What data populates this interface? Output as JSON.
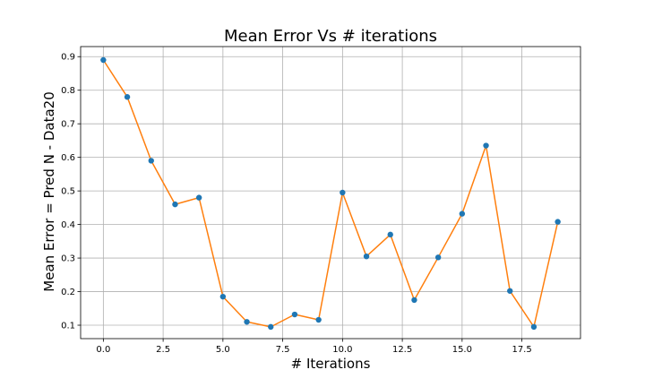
{
  "chart_data": {
    "type": "line",
    "title": "Mean Error Vs # iterations",
    "xlabel": "# Iterations",
    "ylabel": "Mean Error = Pred N - Data20",
    "xlim": [
      -0.95,
      19.95
    ],
    "ylim": [
      0.06,
      0.93
    ],
    "xticks": [
      0.0,
      2.5,
      5.0,
      7.5,
      10.0,
      12.5,
      15.0,
      17.5
    ],
    "xtick_labels": [
      "0.0",
      "2.5",
      "5.0",
      "7.5",
      "10.0",
      "12.5",
      "15.0",
      "17.5"
    ],
    "yticks": [
      0.1,
      0.2,
      0.3,
      0.4,
      0.5,
      0.6,
      0.7,
      0.8,
      0.9
    ],
    "ytick_labels": [
      "0.1",
      "0.2",
      "0.3",
      "0.4",
      "0.5",
      "0.6",
      "0.7",
      "0.8",
      "0.9"
    ],
    "grid": true,
    "series": [
      {
        "x": [
          0,
          1,
          2,
          3,
          4,
          5,
          6,
          7,
          8,
          9,
          10,
          11,
          12,
          13,
          14,
          15,
          16,
          17,
          18,
          19
        ],
        "y": [
          0.89,
          0.78,
          0.59,
          0.46,
          0.48,
          0.185,
          0.11,
          0.095,
          0.132,
          0.116,
          0.495,
          0.305,
          0.37,
          0.175,
          0.302,
          0.432,
          0.635,
          0.202,
          0.095,
          0.408
        ],
        "line_color": "#ff7f0e",
        "marker_color": "#1f77b4"
      }
    ]
  }
}
